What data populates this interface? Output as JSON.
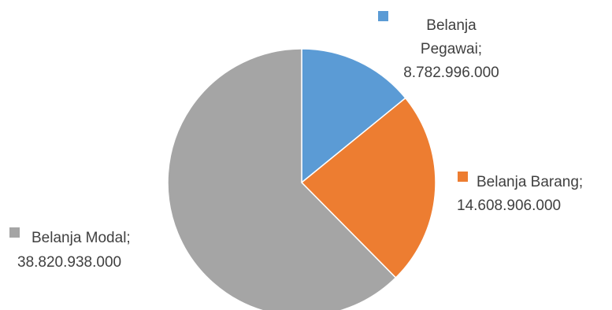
{
  "chart_data": {
    "type": "pie",
    "title": "",
    "start_angle_deg": 0,
    "direction": "clockwise",
    "slices": [
      {
        "name": "Belanja Pegawai",
        "value": 8782996000,
        "value_label": "8.782.996.000",
        "label_lines": [
          "Belanja",
          "Pegawai;",
          "8.782.996.000"
        ],
        "color": "#5B9BD5"
      },
      {
        "name": "Belanja Barang",
        "value": 14608906000,
        "value_label": "14.608.906.000",
        "label_lines": [
          "Belanja Barang;",
          "14.608.906.000"
        ],
        "color": "#ED7D31"
      },
      {
        "name": "Belanja Modal",
        "value": 38820938000,
        "value_label": "38.820.938.000",
        "label_lines": [
          "Belanja Modal;",
          "38.820.938.000"
        ],
        "color": "#A5A5A5"
      }
    ]
  }
}
